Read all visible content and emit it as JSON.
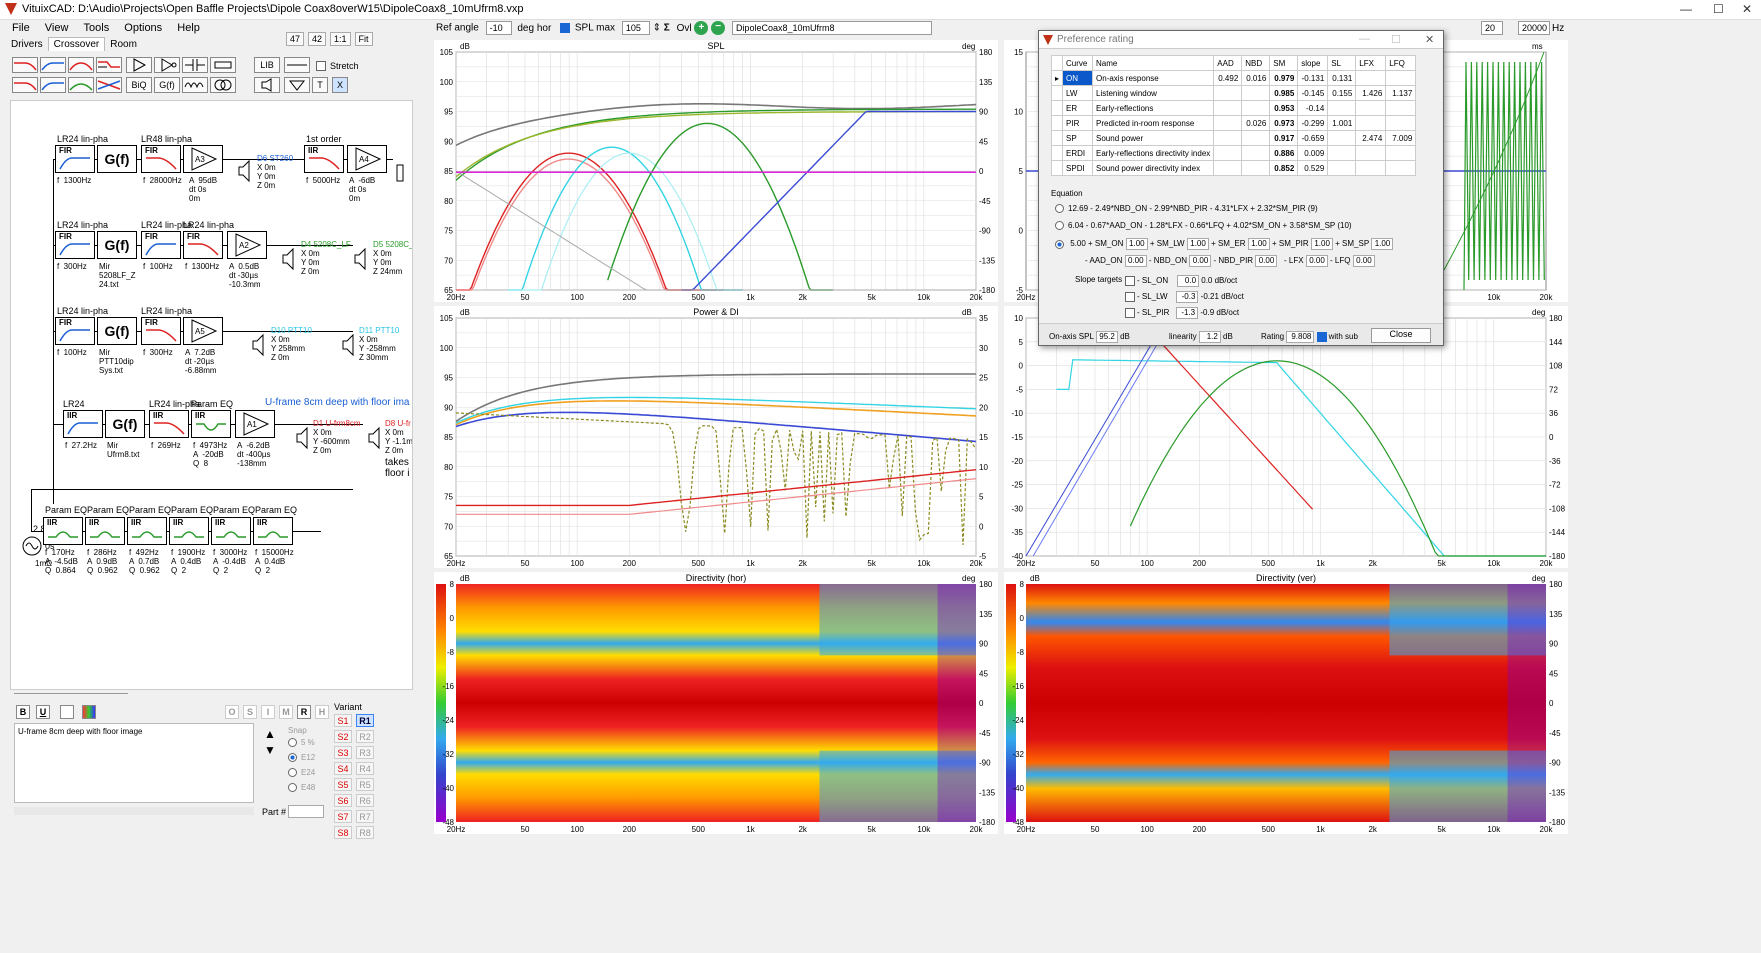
{
  "window": {
    "title": "VituixCAD: D:\\Audio\\Projects\\Open Baffle Projects\\Dipole Coax8overW15\\DipoleCoax8_10mUfrm8.vxp",
    "min": "—",
    "max": "☐",
    "close": "✕"
  },
  "menu": [
    "File",
    "View",
    "Tools",
    "Options",
    "Help"
  ],
  "subtabs": [
    "Drivers",
    "Crossover",
    "Room"
  ],
  "zoom": [
    "47",
    "42",
    "1:1",
    "Fit"
  ],
  "stretch_label": "Stretch",
  "toolbar": {
    "lib": "LIB",
    "biq": "BiQ",
    "gf": "G(f)",
    "t": "T",
    "x": "X"
  },
  "schematic": {
    "row1": {
      "h1": "LR24 lin-pha",
      "h2": "LR48 lin-pha",
      "h3": "1st order",
      "fir": "FIR",
      "gf": "G(f)",
      "iir": "IIR",
      "f1": "f  1300Hz",
      "f2": "f  28000Hz",
      "amp": "A  95dB\ndt 0s\n0m",
      "amp_id": "A3",
      "d": "D6 ST260",
      "dxyz": "X 0m\nY 0m\nZ 0m",
      "f3": "f  5000Hz",
      "amp2": "A  -6dB\ndt 0s\n0m",
      "amp2_id": "A4"
    },
    "row2": {
      "h1": "LR24 lin-pha",
      "h2": "LR24 lin-pha",
      "h3": "LR24 lin-pha",
      "fir": "FIR",
      "gf": "G(f)",
      "f1": "f  300Hz",
      "mir": "Mir\n5208LF_Z\n24.txt",
      "f2": "f  100Hz",
      "f3": "f  1300Hz",
      "amp": "A  0.5dB\ndt -30µs\n-10.3mm",
      "amp_id": "A2",
      "d1": "D4 5208C_LF",
      "d1xyz": "X 0m\nY 0m\nZ 0m",
      "d2": "D5 5208C_L",
      "d2xyz": "X 0m\nY 0m\nZ 24mm"
    },
    "row3": {
      "h1": "LR24 lin-pha",
      "h2": "LR24 lin-pha",
      "fir": "FIR",
      "gf": "G(f)",
      "f1": "f  100Hz",
      "mir": "Mir\nPTT10dip\nSys.txt",
      "f2": "f  300Hz",
      "amp": "A  7.2dB\ndt -20µs\n-6.88mm",
      "amp_id": "A5",
      "d1": "D10 PTT10",
      "d1xyz": "X 0m\nY 258mm\nZ 0m",
      "d2": "D11 PTT10",
      "d2xyz": "X 0m\nY -258mm\nZ 30mm"
    },
    "row4": {
      "h1": "LR24",
      "h2": "LR24 lin-pha",
      "h3": "Param EQ",
      "title": "U-frame 8cm deep with floor ima",
      "iir": "IIR",
      "gf": "G(f)",
      "f1": "f  27.2Hz",
      "mir": "Mir\nUfrm8.txt",
      "f2": "f  269Hz",
      "eq": "f  4973Hz\nA  -20dB\nQ  8",
      "amp": "A  -6.2dB\ndt -400µs\n-138mm",
      "amp_id": "A1",
      "d1": "D1 U-frm8cm",
      "d1xyz": "X 0m\nY -600mm\nZ 0m",
      "d2": "D8 U-fr",
      "d2xyz": "X 0m\nY -1.1m\nZ 0m",
      "note": "takes\nfloor i"
    },
    "source": {
      "v": "2.83V",
      "t": "0s",
      "r": "1mΩ"
    },
    "peq": [
      {
        "h": "Param EQ",
        "iir": "IIR",
        "txt": "f  170Hz\nA  -4.5dB\nQ  0.864"
      },
      {
        "h": "Param EQ",
        "iir": "IIR",
        "txt": "f  286Hz\nA  0.9dB\nQ  0.962"
      },
      {
        "h": "Param EQ",
        "iir": "IIR",
        "txt": "f  492Hz\nA  0.7dB\nQ  0.962"
      },
      {
        "h": "Param EQ",
        "iir": "IIR",
        "txt": "f  1900Hz\nA  0.4dB\nQ  2"
      },
      {
        "h": "Param EQ",
        "iir": "IIR",
        "txt": "f  3000Hz\nA  -0.4dB\nQ  2"
      },
      {
        "h": "Param EQ",
        "iir": "IIR",
        "txt": "f  15000Hz\nA  0.4dB\nQ  2"
      }
    ]
  },
  "notes": {
    "fmt": [
      "B",
      "U"
    ],
    "text": "U-frame 8cm deep with floor image",
    "osi": [
      "O",
      "S",
      "I",
      "M",
      "R",
      "H"
    ],
    "snap_label": "Snap",
    "snap": [
      "5 %",
      "E12",
      "E24",
      "E48"
    ],
    "part_label": "Part #"
  },
  "variant": {
    "label": "Variant",
    "s": [
      "S1",
      "S2",
      "S3",
      "S4",
      "S5",
      "S6",
      "S7",
      "S8"
    ],
    "r": [
      "R1",
      "R2",
      "R3",
      "R4",
      "R5",
      "R6",
      "R7",
      "R8"
    ]
  },
  "topbar": {
    "ref_angle_label": "Ref angle",
    "ref_angle": "-10",
    "deg_hor": "deg hor",
    "spl_max_label": "SPL max",
    "spl_max": "105",
    "ovl": "Ovl",
    "overlay": "DipoleCoax8_10mUfrm8",
    "f_lo": "20",
    "f_hi": "20000",
    "hz": "Hz"
  },
  "graphs": {
    "spl": {
      "title": "SPL",
      "yl": "dB",
      "yr": "deg",
      "left": [
        "105",
        "100",
        "95",
        "90",
        "85",
        "80",
        "75",
        "70",
        "65"
      ],
      "right": [
        "180",
        "135",
        "90",
        "45",
        "0",
        "-45",
        "-90",
        "-135",
        "-180"
      ]
    },
    "power": {
      "title": "Power & DI",
      "yl": "dB",
      "yr": "dB",
      "left": [
        "105",
        "100",
        "95",
        "90",
        "85",
        "80",
        "75",
        "70",
        "65"
      ],
      "right": [
        "35",
        "30",
        "25",
        "20",
        "15",
        "10",
        "5",
        "0",
        "-5"
      ]
    },
    "dirh": {
      "title": "Directivity (hor)",
      "yl": "dB",
      "yr": "deg",
      "left": [
        "8",
        "0",
        "-8",
        "-16",
        "-24",
        "-32",
        "-40",
        "-48"
      ],
      "right": [
        "180",
        "135",
        "90",
        "45",
        "0",
        "-45",
        "-90",
        "-135",
        "-180"
      ]
    },
    "dirv": {
      "title": "Directivity (ver)",
      "yl": "dB",
      "yr": "deg",
      "left": [
        "8",
        "0",
        "-8",
        "-16",
        "-24",
        "-32",
        "-40",
        "-48"
      ],
      "right": [
        "180",
        "135",
        "90",
        "45",
        "0",
        "-45",
        "-90",
        "-135",
        "-180"
      ]
    },
    "xf": [
      "20Hz",
      "50",
      "100",
      "200",
      "500",
      "1k",
      "2k",
      "5k",
      "10k",
      "20k"
    ],
    "tr_left": [
      "15",
      "10",
      "5",
      "0",
      "-5"
    ],
    "tr_right": [
      "ms"
    ],
    "br_left": [
      "10",
      "5",
      "0",
      "-5",
      "-10",
      "-15",
      "-20",
      "-25",
      "-30",
      "-35",
      "-40"
    ],
    "br_right": [
      "deg",
      "180",
      "144",
      "108",
      "72",
      "36",
      "0",
      "-36",
      "-72",
      "-108",
      "-144",
      "-180"
    ],
    "br_x": [
      "20Hz",
      "50",
      "100",
      "200",
      "500",
      "1k",
      "2k",
      "5k",
      "10k",
      "20k"
    ],
    "tr_x": [
      "20Hz",
      "10k",
      "20k"
    ]
  },
  "pref": {
    "title": "Preference rating",
    "cols": [
      "Curve",
      "Name",
      "AAD",
      "NBD",
      "SM",
      "slope",
      "SL",
      "LFX",
      "LFQ"
    ],
    "rows": [
      [
        "ON",
        "On-axis response",
        "0.492",
        "0.016",
        "0.979",
        "-0.131",
        "0.131",
        "",
        ""
      ],
      [
        "LW",
        "Listening window",
        "",
        "",
        "0.985",
        "-0.145",
        "0.155",
        "1.426",
        "1.137"
      ],
      [
        "ER",
        "Early-reflections",
        "",
        "",
        "0.953",
        "-0.14",
        "",
        "",
        ""
      ],
      [
        "PIR",
        "Predicted in-room response",
        "",
        "0.026",
        "0.973",
        "-0.299",
        "1.001",
        "",
        ""
      ],
      [
        "SP",
        "Sound power",
        "",
        "",
        "0.917",
        "-0.659",
        "",
        "2.474",
        "7.009"
      ],
      [
        "ERDI",
        "Early-reflections directivity index",
        "",
        "",
        "0.886",
        "0.009",
        "",
        "",
        ""
      ],
      [
        "SPDI",
        "Sound power directivity index",
        "",
        "",
        "0.852",
        "0.529",
        "",
        "",
        ""
      ]
    ],
    "equation_label": "Equation",
    "eq1": "12.69 - 2.49*NBD_ON - 2.99*NBD_PIR - 4.31*LFX + 2.32*SM_PIR (9)",
    "eq2": "6.04 - 0.67*AAD_ON - 1.28*LFX - 0.66*LFQ + 4.02*SM_ON + 3.58*SM_SP (10)",
    "eq3a": "5.00 + SM_ON",
    "eq3v1": "1.00",
    "eq3b": "+ SM_LW",
    "eq3v2": "1.00",
    "eq3c": "+ SM_ER",
    "eq3v3": "1.00",
    "eq3d": "+ SM_PIR",
    "eq3v4": "1.00",
    "eq3e": "+ SM_SP",
    "eq3v5": "1.00",
    "eq4a": "- AAD_ON",
    "eq4v1": "0.00",
    "eq4b": "- NBD_ON",
    "eq4v2": "0.00",
    "eq4c": "- NBD_PIR",
    "eq4v3": "0.00",
    "eq4d": "- LFX",
    "eq4v4": "0.00",
    "eq4e": "- LFQ",
    "eq4v5": "0.00",
    "slope_label": "Slope targets",
    "sl": [
      {
        "n": "- SL_ON",
        "v": "0.0",
        "u": "0.0 dB/oct"
      },
      {
        "n": "- SL_LW",
        "v": "-0.3",
        "u": "-0.21 dB/oct"
      },
      {
        "n": "- SL_PIR",
        "v": "-1.3",
        "u": "-0.9 dB/oct"
      }
    ],
    "onaxis_label": "On-axis SPL",
    "onaxis": "95.2",
    "db": "dB",
    "lin_label": "linearity",
    "lin": "1.2",
    "db2": "dB",
    "rating_label": "Rating",
    "rating": "9.808",
    "withsub": "with sub",
    "close": "Close"
  }
}
